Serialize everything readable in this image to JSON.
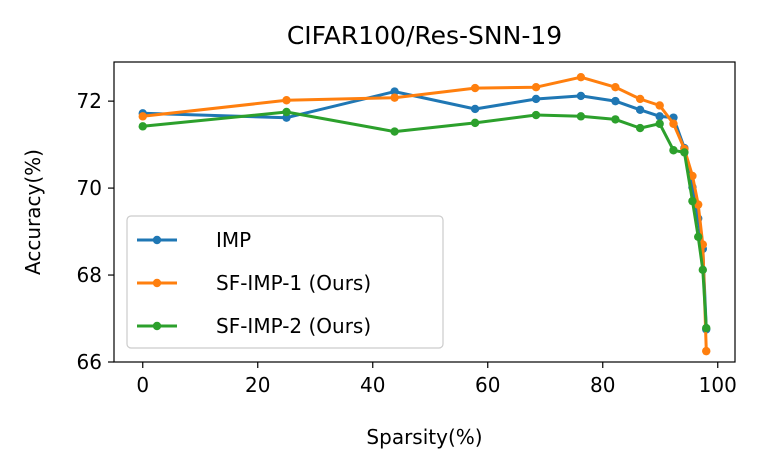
{
  "chart_data": {
    "type": "line",
    "title": "CIFAR100/Res-SNN-19",
    "xlabel": "Sparsity(%)",
    "ylabel": "Accuracy(%)",
    "xlim": [
      -5,
      103
    ],
    "ylim": [
      66.0,
      72.9
    ],
    "xticks": [
      0,
      20,
      40,
      60,
      80,
      100
    ],
    "yticks": [
      66,
      68,
      70,
      72
    ],
    "grid": false,
    "legend_position": "lower-left",
    "series": [
      {
        "name": "IMP",
        "color": "#1f77b4",
        "x": [
          0,
          25,
          43.8,
          57.8,
          68.4,
          76.2,
          82.2,
          86.5,
          89.9,
          92.3,
          94.2,
          95.6,
          96.6,
          97.4,
          98.0
        ],
        "y": [
          71.72,
          71.62,
          72.22,
          71.82,
          72.05,
          72.12,
          72.0,
          71.8,
          71.65,
          71.62,
          70.92,
          70.02,
          69.3,
          68.6,
          66.75
        ]
      },
      {
        "name": "SF-IMP-1 (Ours)",
        "color": "#ff7f0e",
        "x": [
          0,
          25,
          43.8,
          57.8,
          68.4,
          76.2,
          82.2,
          86.5,
          89.9,
          92.3,
          94.2,
          95.6,
          96.6,
          97.4,
          98.0
        ],
        "y": [
          71.65,
          72.02,
          72.08,
          72.3,
          72.32,
          72.55,
          72.32,
          72.05,
          71.9,
          71.48,
          70.9,
          70.28,
          69.62,
          68.7,
          66.25
        ]
      },
      {
        "name": "SF-IMP-2 (Ours)",
        "color": "#2ca02c",
        "x": [
          0,
          25,
          43.8,
          57.8,
          68.4,
          76.2,
          82.2,
          86.5,
          89.9,
          92.3,
          94.2,
          95.6,
          96.6,
          97.4,
          98.0
        ],
        "y": [
          71.42,
          71.75,
          71.3,
          71.5,
          71.68,
          71.65,
          71.58,
          71.38,
          71.48,
          70.87,
          70.82,
          69.7,
          68.88,
          68.12,
          66.78
        ]
      }
    ]
  }
}
